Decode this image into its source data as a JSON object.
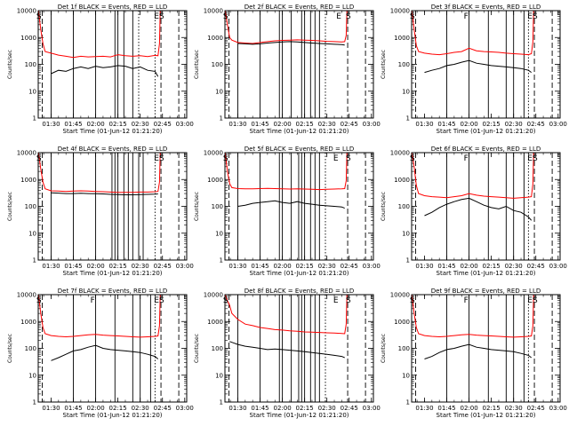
{
  "figure": {
    "ylabel": "Counts/sec",
    "xlabel_prefix": "Start Time (01-Jun-12 01:21:20)",
    "time_ticks": [
      "01:30",
      "01:45",
      "02:00",
      "02:15",
      "02:30",
      "02:45",
      "03:00"
    ],
    "time_tick_minutes": [
      90,
      105,
      120,
      135,
      150,
      165,
      180
    ],
    "x_range_minutes": [
      81.33,
      181.33
    ],
    "y_ticks": [
      "1",
      "10",
      "100",
      "1000",
      "10000"
    ],
    "y_range": [
      1,
      10000
    ],
    "y_scale": "log",
    "colors": {
      "events": "#000000",
      "lld": "#ff0000"
    }
  },
  "chart_data": [
    {
      "type": "line",
      "title": "Det 1f BLACK = Events, RED = LLD",
      "series": [
        {
          "color": "#ff0000",
          "x": [
            81.5,
            83,
            84.5,
            86,
            90,
            95,
            100,
            105,
            110,
            115,
            120,
            125,
            130,
            135,
            140,
            145,
            150,
            155,
            160,
            162,
            163,
            163.5
          ],
          "values": [
            10000,
            2000,
            600,
            300,
            260,
            220,
            200,
            180,
            200,
            190,
            195,
            200,
            190,
            230,
            210,
            200,
            210,
            195,
            215,
            210,
            600,
            10000
          ]
        },
        {
          "color": "#000000",
          "x": [
            90,
            95,
            100,
            105,
            110,
            115,
            120,
            125,
            130,
            135,
            140,
            145,
            150,
            155,
            160,
            162
          ],
          "values": [
            45,
            60,
            55,
            70,
            80,
            70,
            85,
            75,
            80,
            90,
            85,
            70,
            80,
            60,
            55,
            35
          ]
        }
      ],
      "labels": [
        {
          "text": "S",
          "x": 81.8
        },
        {
          "text": "E",
          "x": 161
        },
        {
          "text": "S",
          "x": 164.5
        }
      ],
      "solid_lines": [
        90,
        105,
        120,
        133,
        135,
        139,
        145
      ],
      "dashed_lines": [
        84,
        164,
        176
      ],
      "dotted_lines": [
        149,
        160
      ]
    },
    {
      "type": "line",
      "title": "Det 2f BLACK = Events, RED = LLD",
      "series": [
        {
          "color": "#ff0000",
          "x": [
            81.5,
            83,
            84.5,
            86,
            90,
            95,
            100,
            105,
            110,
            115,
            120,
            125,
            130,
            135,
            140,
            145,
            150,
            155,
            160,
            162,
            163,
            163.5
          ],
          "values": [
            10000,
            3000,
            1000,
            800,
            650,
            620,
            600,
            650,
            700,
            750,
            780,
            800,
            820,
            800,
            780,
            750,
            720,
            700,
            680,
            700,
            1200,
            10000
          ]
        },
        {
          "color": "#000000",
          "x": [
            90,
            95,
            100,
            105,
            110,
            115,
            120,
            125,
            130,
            135,
            140,
            145,
            150,
            155,
            160,
            162
          ],
          "values": [
            600,
            580,
            560,
            580,
            620,
            650,
            680,
            700,
            680,
            650,
            620,
            600,
            580,
            560,
            540,
            520
          ]
        }
      ],
      "labels": [
        {
          "text": "S",
          "x": 81.8
        },
        {
          "text": "E",
          "x": 158
        },
        {
          "text": "S",
          "x": 164.5
        }
      ],
      "solid_lines": [
        90,
        105,
        118,
        120,
        126,
        133,
        135,
        139,
        142,
        145
      ],
      "dashed_lines": [
        84,
        164,
        176
      ],
      "dotted_lines": [
        149
      ]
    },
    {
      "type": "line",
      "title": "Det 3f BLACK = Events, RED = LLD",
      "series": [
        {
          "color": "#ff0000",
          "x": [
            81.5,
            83,
            84.5,
            86,
            90,
            95,
            100,
            105,
            110,
            115,
            120,
            125,
            130,
            135,
            140,
            145,
            150,
            155,
            160,
            162,
            163,
            163.5
          ],
          "values": [
            10000,
            2000,
            500,
            300,
            260,
            240,
            230,
            250,
            280,
            300,
            400,
            320,
            300,
            290,
            280,
            260,
            250,
            240,
            230,
            250,
            700,
            10000
          ]
        },
        {
          "color": "#000000",
          "x": [
            90,
            95,
            100,
            105,
            110,
            115,
            120,
            125,
            130,
            135,
            140,
            145,
            150,
            155,
            160,
            162
          ],
          "values": [
            50,
            60,
            70,
            90,
            100,
            120,
            140,
            110,
            100,
            90,
            85,
            80,
            75,
            70,
            60,
            50
          ]
        }
      ],
      "labels": [
        {
          "text": "S",
          "x": 81.8
        },
        {
          "text": "F",
          "x": 118
        },
        {
          "text": "E",
          "x": 161
        },
        {
          "text": "S",
          "x": 164.5
        }
      ],
      "solid_lines": [
        105,
        120,
        133,
        145,
        150,
        157
      ],
      "dashed_lines": [
        84,
        164,
        176
      ],
      "dotted_lines": [
        160
      ]
    },
    {
      "type": "line",
      "title": "Det 4f BLACK = Events, RED = LLD",
      "series": [
        {
          "color": "#ff0000",
          "x": [
            81.5,
            83,
            84.5,
            86,
            90,
            95,
            100,
            105,
            110,
            115,
            120,
            125,
            130,
            135,
            140,
            145,
            150,
            155,
            160,
            162,
            163,
            163.5
          ],
          "values": [
            10000,
            2500,
            800,
            450,
            380,
            370,
            360,
            370,
            380,
            370,
            360,
            350,
            340,
            330,
            330,
            330,
            340,
            340,
            350,
            360,
            800,
            10000
          ]
        },
        {
          "color": "#000000",
          "x": [
            90,
            95,
            100,
            105,
            110,
            115,
            120,
            125,
            130,
            135,
            140,
            145,
            150,
            155,
            160,
            162
          ],
          "values": [
            320,
            310,
            300,
            300,
            305,
            300,
            295,
            290,
            280,
            275,
            270,
            270,
            275,
            280,
            285,
            290
          ]
        }
      ],
      "labels": [
        {
          "text": "S",
          "x": 81.8
        },
        {
          "text": "E",
          "x": 161
        },
        {
          "text": "S",
          "x": 164.5
        }
      ],
      "solid_lines": [
        90,
        105,
        120,
        131,
        133,
        135,
        139,
        142,
        145,
        149,
        152
      ],
      "dashed_lines": [
        84,
        164,
        176
      ],
      "dotted_lines": [
        160
      ]
    },
    {
      "type": "line",
      "title": "Det 5f BLACK = Events, RED = LLD",
      "series": [
        {
          "color": "#ff0000",
          "x": [
            81.5,
            83,
            84.5,
            86,
            90,
            95,
            100,
            105,
            110,
            115,
            120,
            125,
            130,
            135,
            140,
            145,
            150,
            155,
            160,
            162,
            163,
            163.5
          ],
          "values": [
            10000,
            2000,
            700,
            500,
            460,
            450,
            450,
            460,
            470,
            460,
            450,
            440,
            450,
            440,
            430,
            420,
            430,
            440,
            450,
            460,
            900,
            10000
          ]
        },
        {
          "color": "#000000",
          "x": [
            90,
            95,
            100,
            105,
            110,
            115,
            120,
            125,
            130,
            135,
            140,
            145,
            150,
            155,
            160,
            162
          ],
          "values": [
            100,
            110,
            130,
            140,
            150,
            160,
            140,
            130,
            150,
            130,
            120,
            110,
            105,
            100,
            95,
            85
          ]
        }
      ],
      "labels": [
        {
          "text": "S",
          "x": 81.8
        },
        {
          "text": "E",
          "x": 156
        },
        {
          "text": "S",
          "x": 164.5
        }
      ],
      "solid_lines": [
        90,
        105,
        118,
        120,
        126,
        131,
        133,
        135,
        139,
        142,
        145
      ],
      "dashed_lines": [
        84,
        164,
        176
      ],
      "dotted_lines": [
        149
      ]
    },
    {
      "type": "line",
      "title": "Det 6f BLACK = Events, RED = LLD",
      "series": [
        {
          "color": "#ff0000",
          "x": [
            81.5,
            83,
            84.5,
            86,
            90,
            95,
            100,
            105,
            110,
            115,
            120,
            125,
            130,
            135,
            140,
            145,
            150,
            155,
            160,
            162,
            163,
            163.5
          ],
          "values": [
            10000,
            3000,
            600,
            300,
            250,
            230,
            220,
            210,
            230,
            250,
            300,
            260,
            240,
            230,
            220,
            210,
            200,
            210,
            220,
            230,
            700,
            10000
          ]
        },
        {
          "color": "#000000",
          "x": [
            90,
            95,
            100,
            105,
            110,
            115,
            120,
            125,
            130,
            135,
            140,
            145,
            150,
            155,
            160,
            162
          ],
          "values": [
            45,
            60,
            90,
            120,
            150,
            180,
            200,
            150,
            110,
            90,
            80,
            100,
            70,
            60,
            40,
            30
          ]
        }
      ],
      "labels": [
        {
          "text": "S",
          "x": 81.8
        },
        {
          "text": "F",
          "x": 118
        },
        {
          "text": "E",
          "x": 161
        },
        {
          "text": "S",
          "x": 164.5
        }
      ],
      "solid_lines": [
        105,
        120,
        133,
        145,
        150,
        157
      ],
      "dashed_lines": [
        84,
        164,
        176
      ],
      "dotted_lines": [
        160
      ]
    },
    {
      "type": "line",
      "title": "Det 7f BLACK = Events, RED = LLD",
      "series": [
        {
          "color": "#ff0000",
          "x": [
            81.5,
            83,
            84.5,
            86,
            90,
            95,
            100,
            105,
            110,
            115,
            120,
            125,
            130,
            135,
            140,
            145,
            150,
            155,
            160,
            162,
            163,
            163.5
          ],
          "values": [
            10000,
            2000,
            600,
            350,
            300,
            280,
            270,
            280,
            300,
            320,
            330,
            310,
            300,
            290,
            280,
            270,
            260,
            270,
            280,
            290,
            700,
            10000
          ]
        },
        {
          "color": "#000000",
          "x": [
            90,
            95,
            100,
            105,
            110,
            115,
            120,
            125,
            130,
            135,
            140,
            145,
            150,
            155,
            160,
            162
          ],
          "values": [
            35,
            45,
            60,
            80,
            90,
            110,
            130,
            100,
            90,
            85,
            80,
            75,
            70,
            60,
            50,
            40
          ]
        }
      ],
      "labels": [
        {
          "text": "S",
          "x": 81.8
        },
        {
          "text": "F",
          "x": 118
        },
        {
          "text": "E",
          "x": 161
        },
        {
          "text": "S",
          "x": 164.5
        }
      ],
      "solid_lines": [
        105,
        120,
        133,
        145,
        150,
        157
      ],
      "dashed_lines": [
        84,
        164,
        176
      ],
      "dotted_lines": [
        160
      ]
    },
    {
      "type": "line",
      "title": "Det 8f BLACK = Events, RED = LLD",
      "series": [
        {
          "color": "#ff0000",
          "x": [
            81.5,
            83,
            84.5,
            86,
            90,
            95,
            100,
            105,
            110,
            115,
            120,
            125,
            130,
            135,
            140,
            145,
            150,
            155,
            160,
            162,
            163,
            163.5
          ],
          "values": [
            10000,
            6000,
            4000,
            2000,
            1200,
            800,
            700,
            600,
            550,
            500,
            480,
            450,
            430,
            410,
            400,
            390,
            380,
            370,
            360,
            350,
            800,
            10000
          ]
        },
        {
          "color": "#000000",
          "x": [
            84.5,
            87,
            90,
            95,
            100,
            105,
            110,
            115,
            120,
            125,
            130,
            135,
            140,
            145,
            150,
            155,
            160,
            162
          ],
          "values": [
            180,
            160,
            140,
            120,
            110,
            100,
            90,
            95,
            90,
            85,
            80,
            75,
            70,
            65,
            60,
            55,
            50,
            45
          ]
        }
      ],
      "labels": [
        {
          "text": "S",
          "x": 81.8
        },
        {
          "text": "E",
          "x": 156
        },
        {
          "text": "S",
          "x": 164.5
        }
      ],
      "solid_lines": [
        90,
        105,
        118,
        120,
        126,
        131,
        133,
        135,
        139,
        142,
        145
      ],
      "dashed_lines": [
        84,
        164,
        176
      ],
      "dotted_lines": [
        149
      ]
    },
    {
      "type": "line",
      "title": "Det 9f BLACK = Events, RED = LLD",
      "series": [
        {
          "color": "#ff0000",
          "x": [
            81.5,
            83,
            84.5,
            86,
            90,
            95,
            100,
            105,
            110,
            115,
            120,
            125,
            130,
            135,
            140,
            145,
            150,
            155,
            160,
            162,
            163,
            163.5
          ],
          "values": [
            10000,
            2000,
            600,
            350,
            300,
            280,
            270,
            280,
            300,
            320,
            330,
            310,
            300,
            290,
            280,
            270,
            260,
            270,
            280,
            290,
            700,
            10000
          ]
        },
        {
          "color": "#000000",
          "x": [
            90,
            95,
            100,
            105,
            110,
            115,
            120,
            125,
            130,
            135,
            140,
            145,
            150,
            155,
            160,
            162
          ],
          "values": [
            40,
            50,
            70,
            90,
            100,
            120,
            140,
            110,
            100,
            90,
            85,
            80,
            75,
            65,
            55,
            45
          ]
        }
      ],
      "labels": [
        {
          "text": "S",
          "x": 81.8
        },
        {
          "text": "F",
          "x": 118
        },
        {
          "text": "E",
          "x": 161
        },
        {
          "text": "S",
          "x": 164.5
        }
      ],
      "solid_lines": [
        105,
        120,
        133,
        145,
        150,
        157
      ],
      "dashed_lines": [
        84,
        164,
        176
      ],
      "dotted_lines": [
        160
      ]
    }
  ]
}
